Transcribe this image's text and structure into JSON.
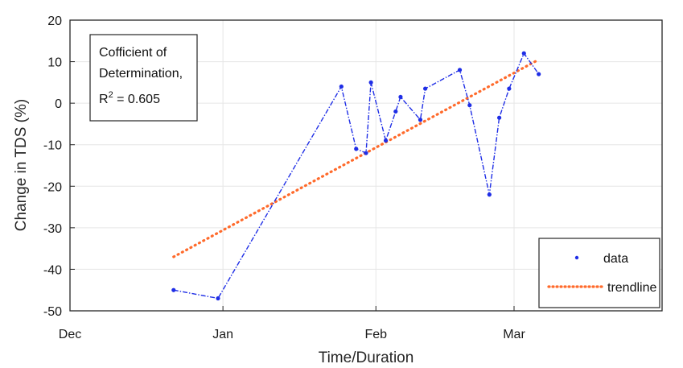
{
  "chart_data": {
    "type": "line",
    "title": "",
    "xlabel": "Time/Duration",
    "ylabel": "Change in TDS (%)",
    "ylim": [
      -50,
      20
    ],
    "yticks": [
      20,
      10,
      0,
      -10,
      -20,
      -30,
      -40,
      -50
    ],
    "xlim": [
      "Dec 1",
      "Mar 31"
    ],
    "xticks": [
      {
        "label": "Dec",
        "date": "Dec 1"
      },
      {
        "label": "Jan",
        "date": "Jan 1"
      },
      {
        "label": "Feb",
        "date": "Feb 1"
      },
      {
        "label": "Mar",
        "date": "Mar 1"
      }
    ],
    "grid": true,
    "annotation": {
      "line1": "Cofficient of",
      "line2": "Determination,",
      "r2_prefix": "R",
      "r2_sup": "2",
      "r2_value": " = 0.605"
    },
    "legend": {
      "position": "bottom-right",
      "entries": [
        "data",
        "trendline"
      ]
    },
    "series": [
      {
        "name": "data",
        "style": "dash-dot with dot markers",
        "color": "#1f2ee6",
        "points": [
          {
            "x": "Dec 22",
            "y": -45
          },
          {
            "x": "Dec 31",
            "y": -47
          },
          {
            "x": "Jan 25",
            "y": 4
          },
          {
            "x": "Jan 28",
            "y": -11
          },
          {
            "x": "Jan 30",
            "y": -12
          },
          {
            "x": "Jan 31",
            "y": 5
          },
          {
            "x": "Feb 3",
            "y": -9
          },
          {
            "x": "Feb 5",
            "y": -2
          },
          {
            "x": "Feb 6",
            "y": 1.5
          },
          {
            "x": "Feb 10",
            "y": -4
          },
          {
            "x": "Feb 11",
            "y": 3.5
          },
          {
            "x": "Feb 18",
            "y": 8
          },
          {
            "x": "Feb 20",
            "y": -0.5
          },
          {
            "x": "Feb 24",
            "y": -22
          },
          {
            "x": "Feb 26",
            "y": -3.5
          },
          {
            "x": "Feb 28",
            "y": 3.5
          },
          {
            "x": "Mar 3",
            "y": 12
          },
          {
            "x": "Mar 6",
            "y": 7
          }
        ]
      },
      {
        "name": "trendline",
        "style": "dotted",
        "color": "#ff6a2b",
        "points": [
          {
            "x": "Dec 22",
            "y": -37
          },
          {
            "x": "Mar 6",
            "y": 10.5
          }
        ]
      }
    ]
  }
}
